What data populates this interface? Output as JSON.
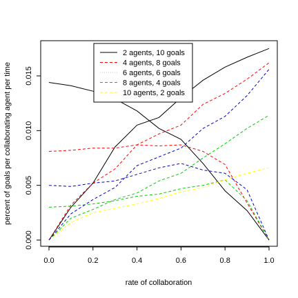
{
  "chart_data": {
    "type": "line",
    "xlabel": "rate of collaboration",
    "ylabel": "percent of goals per collaborating agent per time",
    "xlim": [
      0,
      1
    ],
    "ylim": [
      0,
      0.018
    ],
    "xticks": [
      "0.0",
      "0.2",
      "0.4",
      "0.6",
      "0.8",
      "1.0"
    ],
    "yticks": [
      "0.000",
      "0.005",
      "0.010",
      "0.015"
    ],
    "legend_position": "top-center",
    "x": [
      0.0,
      0.1,
      0.2,
      0.3,
      0.4,
      0.5,
      0.6,
      0.7,
      0.8,
      0.9,
      1.0
    ],
    "series": [
      {
        "name": "2 agents, 10 goals",
        "color": "#000000",
        "dash": "solid",
        "lines": [
          [
            0.0,
            0.003,
            0.0052,
            0.0085,
            0.0105,
            0.0112,
            0.013,
            0.0146,
            0.0158,
            0.0167,
            0.0175
          ],
          [
            0.0144,
            0.0141,
            0.0136,
            0.0129,
            0.0118,
            0.0102,
            0.0092,
            0.007,
            0.0045,
            0.0027,
            0.0
          ]
        ]
      },
      {
        "name": "4 agents, 8 goals",
        "color": "#ff0000",
        "dash": "dashed",
        "lines": [
          [
            0.0,
            0.0032,
            0.0052,
            0.0065,
            0.0087,
            0.0097,
            0.0105,
            0.0124,
            0.0134,
            0.0147,
            0.0162
          ],
          [
            0.0081,
            0.0082,
            0.0084,
            0.0084,
            0.0087,
            0.0086,
            0.0087,
            0.0081,
            0.0069,
            0.0034,
            0.0
          ]
        ]
      },
      {
        "name": "6 agents, 6 goals",
        "color": "#d8b8b8",
        "dash": "dotted",
        "lines": []
      },
      {
        "name": "8 agents, 4 goals",
        "color": "#00cc00",
        "dash": "dashed",
        "lines": [
          [
            0.0,
            0.002,
            0.0028,
            0.0037,
            0.0043,
            0.0054,
            0.0061,
            0.0075,
            0.0088,
            0.0102,
            0.0114
          ],
          [
            0.003,
            0.0031,
            0.0033,
            0.0036,
            0.004,
            0.0042,
            0.0047,
            0.005,
            0.0055,
            0.0036,
            0.0
          ]
        ]
      },
      {
        "name": "10 agents, 2 goals",
        "color": "#ffff00",
        "dash": "dashed",
        "lines": [
          [
            0.0,
            0.0016,
            0.0025,
            0.0029,
            0.0033,
            0.0038,
            0.0044,
            0.0048,
            0.0055,
            0.0061,
            0.0066
          ],
          [
            0.0,
            0.0,
            0.0,
            0.0,
            0.0,
            0.0,
            0.0,
            0.0,
            0.0,
            0.0,
            0.0
          ]
        ]
      },
      {
        "name": "",
        "color": "#0000cc",
        "dash": "dashed",
        "lines": [
          [
            0.0,
            0.0024,
            0.0037,
            0.0048,
            0.0068,
            0.0076,
            0.0084,
            0.0102,
            0.0113,
            0.0132,
            0.0156
          ],
          [
            0.005,
            0.0049,
            0.0052,
            0.0054,
            0.006,
            0.0066,
            0.007,
            0.0064,
            0.0061,
            0.0046,
            0.0
          ]
        ]
      }
    ]
  }
}
